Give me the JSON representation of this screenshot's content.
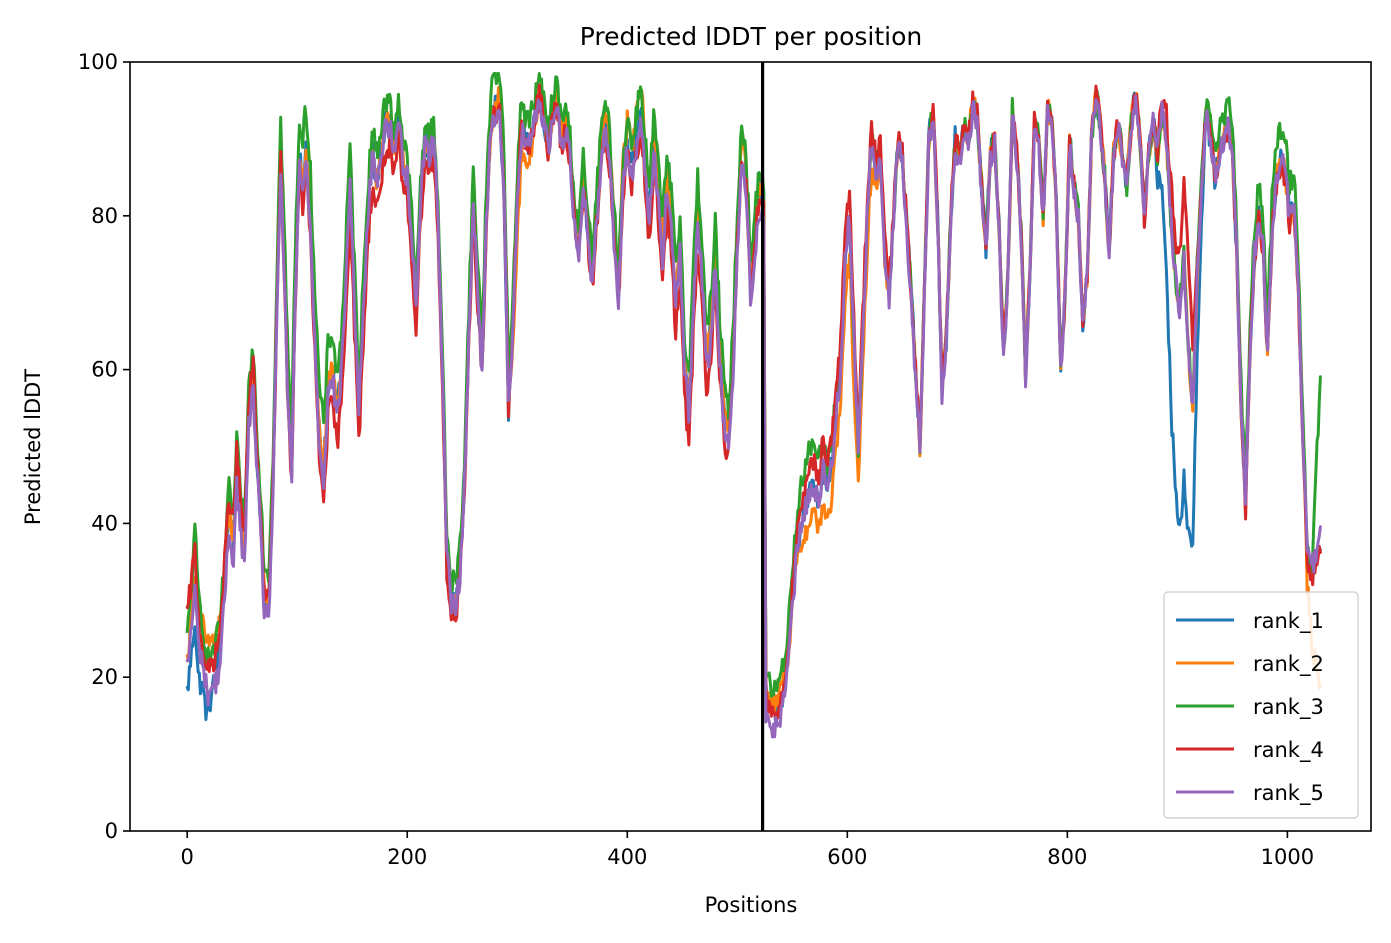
{
  "chart_data": {
    "type": "line",
    "title": "Predicted lDDT per position",
    "xlabel": "Positions",
    "ylabel": "Predicted lDDT",
    "xlim": [
      -52,
      1076
    ],
    "ylim": [
      0,
      100
    ],
    "xticks": [
      0,
      200,
      400,
      600,
      800,
      1000
    ],
    "xtick_labels": [
      "0",
      "200",
      "400",
      "600",
      "800",
      "1000"
    ],
    "yticks": [
      0,
      20,
      40,
      60,
      80,
      100
    ],
    "ytick_labels": [
      "0",
      "20",
      "40",
      "60",
      "80",
      "100"
    ],
    "grid": false,
    "legend_position": "lower-right",
    "vertical_line": {
      "x": 523,
      "color": "#000000"
    },
    "x_start": 0,
    "x_end": 1030,
    "profile": [
      [
        0,
        22
      ],
      [
        4,
        28
      ],
      [
        7,
        33
      ],
      [
        10,
        26
      ],
      [
        14,
        24
      ],
      [
        18,
        20
      ],
      [
        22,
        21
      ],
      [
        26,
        22
      ],
      [
        30,
        25
      ],
      [
        34,
        33
      ],
      [
        38,
        42
      ],
      [
        42,
        38
      ],
      [
        45,
        48
      ],
      [
        48,
        42
      ],
      [
        52,
        37
      ],
      [
        56,
        55
      ],
      [
        60,
        60
      ],
      [
        63,
        50
      ],
      [
        67,
        40
      ],
      [
        70,
        31
      ],
      [
        74,
        30
      ],
      [
        78,
        45
      ],
      [
        82,
        72
      ],
      [
        85,
        88
      ],
      [
        88,
        75
      ],
      [
        92,
        55
      ],
      [
        95,
        48
      ],
      [
        98,
        70
      ],
      [
        102,
        88
      ],
      [
        105,
        84
      ],
      [
        108,
        89
      ],
      [
        112,
        80
      ],
      [
        116,
        65
      ],
      [
        120,
        52
      ],
      [
        124,
        47
      ],
      [
        128,
        58
      ],
      [
        132,
        60
      ],
      [
        136,
        55
      ],
      [
        140,
        60
      ],
      [
        144,
        72
      ],
      [
        148,
        85
      ],
      [
        152,
        70
      ],
      [
        156,
        55
      ],
      [
        160,
        68
      ],
      [
        164,
        80
      ],
      [
        168,
        88
      ],
      [
        172,
        85
      ],
      [
        176,
        88
      ],
      [
        180,
        92
      ],
      [
        184,
        92
      ],
      [
        188,
        88
      ],
      [
        192,
        93
      ],
      [
        196,
        87
      ],
      [
        200,
        85
      ],
      [
        204,
        78
      ],
      [
        208,
        68
      ],
      [
        212,
        82
      ],
      [
        216,
        90
      ],
      [
        220,
        88
      ],
      [
        224,
        90
      ],
      [
        228,
        80
      ],
      [
        232,
        60
      ],
      [
        236,
        36
      ],
      [
        240,
        30
      ],
      [
        244,
        29
      ],
      [
        248,
        34
      ],
      [
        252,
        45
      ],
      [
        256,
        65
      ],
      [
        260,
        82
      ],
      [
        264,
        70
      ],
      [
        268,
        60
      ],
      [
        272,
        80
      ],
      [
        276,
        92
      ],
      [
        280,
        94
      ],
      [
        284,
        94
      ],
      [
        288,
        83
      ],
      [
        292,
        55
      ],
      [
        296,
        65
      ],
      [
        300,
        82
      ],
      [
        304,
        92
      ],
      [
        308,
        89
      ],
      [
        312,
        90
      ],
      [
        316,
        93
      ],
      [
        320,
        96
      ],
      [
        324,
        93
      ],
      [
        328,
        89
      ],
      [
        332,
        93
      ],
      [
        336,
        95
      ],
      [
        340,
        90
      ],
      [
        344,
        92
      ],
      [
        348,
        88
      ],
      [
        352,
        80
      ],
      [
        356,
        76
      ],
      [
        360,
        85
      ],
      [
        364,
        78
      ],
      [
        368,
        72
      ],
      [
        372,
        80
      ],
      [
        376,
        88
      ],
      [
        380,
        92
      ],
      [
        384,
        88
      ],
      [
        388,
        78
      ],
      [
        392,
        70
      ],
      [
        396,
        84
      ],
      [
        400,
        90
      ],
      [
        404,
        86
      ],
      [
        408,
        90
      ],
      [
        412,
        94
      ],
      [
        416,
        88
      ],
      [
        420,
        80
      ],
      [
        424,
        90
      ],
      [
        428,
        84
      ],
      [
        432,
        76
      ],
      [
        436,
        85
      ],
      [
        440,
        80
      ],
      [
        444,
        70
      ],
      [
        448,
        77
      ],
      [
        452,
        62
      ],
      [
        456,
        56
      ],
      [
        460,
        70
      ],
      [
        464,
        82
      ],
      [
        468,
        74
      ],
      [
        472,
        62
      ],
      [
        476,
        66
      ],
      [
        480,
        76
      ],
      [
        484,
        64
      ],
      [
        488,
        55
      ],
      [
        492,
        52
      ],
      [
        496,
        62
      ],
      [
        500,
        78
      ],
      [
        504,
        90
      ],
      [
        508,
        86
      ],
      [
        512,
        72
      ],
      [
        516,
        78
      ],
      [
        520,
        84
      ],
      [
        524,
        82
      ],
      [
        526,
        18
      ],
      [
        530,
        16
      ],
      [
        534,
        15
      ],
      [
        538,
        16
      ],
      [
        542,
        18
      ],
      [
        546,
        22
      ],
      [
        550,
        30
      ],
      [
        554,
        36
      ],
      [
        558,
        40
      ],
      [
        562,
        42
      ],
      [
        566,
        44
      ],
      [
        570,
        45
      ],
      [
        574,
        43
      ],
      [
        578,
        47
      ],
      [
        582,
        44
      ],
      [
        586,
        48
      ],
      [
        590,
        55
      ],
      [
        594,
        60
      ],
      [
        598,
        75
      ],
      [
        602,
        80
      ],
      [
        606,
        64
      ],
      [
        610,
        50
      ],
      [
        614,
        65
      ],
      [
        618,
        80
      ],
      [
        622,
        90
      ],
      [
        626,
        86
      ],
      [
        630,
        88
      ],
      [
        634,
        76
      ],
      [
        638,
        70
      ],
      [
        642,
        80
      ],
      [
        646,
        90
      ],
      [
        650,
        88
      ],
      [
        654,
        79
      ],
      [
        658,
        70
      ],
      [
        662,
        60
      ],
      [
        666,
        50
      ],
      [
        670,
        70
      ],
      [
        674,
        90
      ],
      [
        678,
        94
      ],
      [
        682,
        80
      ],
      [
        686,
        58
      ],
      [
        690,
        64
      ],
      [
        694,
        80
      ],
      [
        698,
        90
      ],
      [
        702,
        88
      ],
      [
        706,
        92
      ],
      [
        710,
        90
      ],
      [
        714,
        95
      ],
      [
        718,
        93
      ],
      [
        722,
        84
      ],
      [
        726,
        76
      ],
      [
        730,
        88
      ],
      [
        734,
        90
      ],
      [
        738,
        78
      ],
      [
        742,
        62
      ],
      [
        746,
        72
      ],
      [
        750,
        94
      ],
      [
        754,
        88
      ],
      [
        758,
        78
      ],
      [
        762,
        60
      ],
      [
        766,
        72
      ],
      [
        770,
        92
      ],
      [
        774,
        90
      ],
      [
        778,
        80
      ],
      [
        782,
        94
      ],
      [
        786,
        92
      ],
      [
        790,
        82
      ],
      [
        794,
        60
      ],
      [
        798,
        70
      ],
      [
        802,
        90
      ],
      [
        806,
        84
      ],
      [
        810,
        80
      ],
      [
        814,
        66
      ],
      [
        818,
        72
      ],
      [
        822,
        90
      ],
      [
        826,
        96
      ],
      [
        830,
        92
      ],
      [
        834,
        85
      ],
      [
        838,
        75
      ],
      [
        842,
        88
      ],
      [
        846,
        92
      ],
      [
        850,
        88
      ],
      [
        854,
        84
      ],
      [
        858,
        92
      ],
      [
        862,
        96
      ],
      [
        866,
        90
      ],
      [
        870,
        80
      ],
      [
        874,
        88
      ],
      [
        878,
        92
      ],
      [
        882,
        88
      ],
      [
        886,
        94
      ],
      [
        890,
        90
      ],
      [
        894,
        80
      ],
      [
        898,
        72
      ],
      [
        902,
        68
      ],
      [
        906,
        74
      ],
      [
        910,
        62
      ],
      [
        914,
        55
      ],
      [
        918,
        72
      ],
      [
        922,
        84
      ],
      [
        926,
        93
      ],
      [
        930,
        90
      ],
      [
        934,
        85
      ],
      [
        938,
        88
      ],
      [
        942,
        90
      ],
      [
        946,
        92
      ],
      [
        950,
        88
      ],
      [
        954,
        75
      ],
      [
        958,
        55
      ],
      [
        962,
        42
      ],
      [
        966,
        62
      ],
      [
        970,
        75
      ],
      [
        974,
        80
      ],
      [
        978,
        76
      ],
      [
        982,
        62
      ],
      [
        986,
        78
      ],
      [
        990,
        85
      ],
      [
        994,
        87
      ],
      [
        998,
        86
      ],
      [
        1002,
        80
      ],
      [
        1006,
        82
      ],
      [
        1010,
        70
      ],
      [
        1014,
        52
      ],
      [
        1018,
        36
      ],
      [
        1022,
        34
      ],
      [
        1026,
        36
      ],
      [
        1030,
        38
      ]
    ],
    "series": [
      {
        "name": "rank_1",
        "color": "#1f77b4",
        "offsets": [
          [
            0,
            -4
          ],
          [
            10,
            -6
          ],
          [
            18,
            -5
          ],
          [
            30,
            0
          ],
          [
            880,
            0
          ],
          [
            895,
            -25
          ],
          [
            905,
            -30
          ],
          [
            912,
            -20
          ],
          [
            925,
            0
          ],
          [
            1030,
            0
          ]
        ]
      },
      {
        "name": "rank_2",
        "color": "#ff7f0e",
        "offsets": [
          [
            0,
            0
          ],
          [
            20,
            4
          ],
          [
            28,
            3
          ],
          [
            40,
            0
          ],
          [
            280,
            0
          ],
          [
            290,
            4
          ],
          [
            300,
            -5
          ],
          [
            320,
            0
          ],
          [
            420,
            3
          ],
          [
            440,
            0
          ],
          [
            520,
            0
          ],
          [
            540,
            2
          ],
          [
            560,
            -3
          ],
          [
            610,
            -6
          ],
          [
            640,
            0
          ],
          [
            1015,
            0
          ],
          [
            1030,
            -20
          ]
        ]
      },
      {
        "name": "rank_3",
        "color": "#2ca02c",
        "offsets": [
          [
            0,
            3
          ],
          [
            8,
            6
          ],
          [
            16,
            2
          ],
          [
            60,
            3
          ],
          [
            120,
            6
          ],
          [
            140,
            4
          ],
          [
            220,
            2
          ],
          [
            290,
            5
          ],
          [
            320,
            2
          ],
          [
            400,
            3
          ],
          [
            480,
            3
          ],
          [
            520,
            2
          ],
          [
            570,
            6
          ],
          [
            600,
            0
          ],
          [
            900,
            0
          ],
          [
            920,
            2
          ],
          [
            980,
            4
          ],
          [
            1010,
            4
          ],
          [
            1022,
            0
          ],
          [
            1030,
            21
          ]
        ]
      },
      {
        "name": "rank_4",
        "color": "#d62728",
        "offsets": [
          [
            0,
            6
          ],
          [
            6,
            4
          ],
          [
            14,
            0
          ],
          [
            40,
            2
          ],
          [
            140,
            -5
          ],
          [
            200,
            -3
          ],
          [
            300,
            0
          ],
          [
            400,
            -2
          ],
          [
            460,
            -6
          ],
          [
            520,
            -1
          ],
          [
            560,
            2
          ],
          [
            580,
            4
          ],
          [
            650,
            0
          ],
          [
            880,
            0
          ],
          [
            900,
            6
          ],
          [
            910,
            12
          ],
          [
            920,
            0
          ],
          [
            1030,
            -1
          ]
        ]
      },
      {
        "name": "rank_5",
        "color": "#9467bd",
        "offsets": [
          [
            0,
            -1
          ],
          [
            30,
            -3
          ],
          [
            80,
            -2
          ],
          [
            200,
            0
          ],
          [
            400,
            -1
          ],
          [
            520,
            -3
          ],
          [
            560,
            0
          ],
          [
            700,
            -1
          ],
          [
            900,
            0
          ],
          [
            1030,
            0
          ]
        ]
      }
    ]
  }
}
